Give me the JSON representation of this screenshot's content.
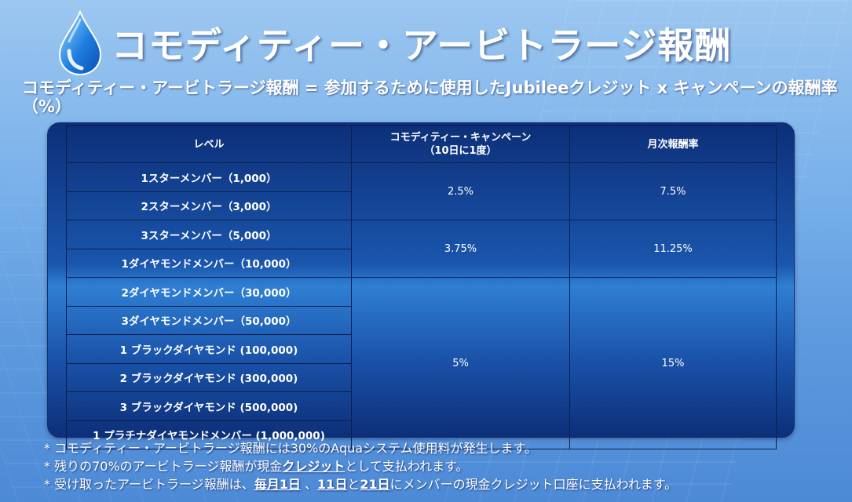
{
  "title": "コモディティー・アービトラージ報酬",
  "formula": "コモディティー・アービトラージ報酬 = 参加するために使用したJubileeクレジット x キャンペーンの報酬率（%）",
  "table": {
    "headers": {
      "level": "レベル",
      "campaign_line1": "コモディティー・キャンペーン",
      "campaign_line2": "（10日に1度）",
      "monthly": "月次報酬率"
    },
    "levels": [
      "1スターメンバー（1,000）",
      "2スターメンバー（3,000）",
      "3スターメンバー（5,000）",
      "1ダイヤモンドメンバー（10,000）",
      "2ダイヤモンドメンバー（30,000）",
      "3ダイヤモンドメンバー（50,000）",
      "1 ブラックダイヤモンド (100,000)",
      "2 ブラックダイヤモンド (300,000)",
      "3 ブラックダイヤモンド (500,000)",
      "1 プラチナダイヤモンドメンバー (1,000,000)"
    ],
    "groups": [
      {
        "campaign_rate": "2.5%",
        "monthly_rate": "7.5%"
      },
      {
        "campaign_rate": "3.75%",
        "monthly_rate": "11.25%"
      },
      {
        "campaign_rate": "5%",
        "monthly_rate": "15%"
      }
    ]
  },
  "notes": {
    "note1": "* コモディティー・アービトラージ報酬には30%のAquaシステム使用料が発生します。",
    "note2_prefix": "* 残りの70%のアービトラージ報酬が現金",
    "note2_credit": "クレジット",
    "note2_suffix": "として支払われます。",
    "note3_prefix": "* 受け取ったアービトラージ報酬は、",
    "note3_day1": "毎月1日",
    "note3_sep1": " 、",
    "note3_day11": "11日",
    "note3_sep2": "と",
    "note3_day21": "21日",
    "note3_suffix": "にメンバーの現金クレジット口座に支払われます。"
  },
  "colors": {
    "panel_dark": "#0d2f78",
    "panel_mid": "#2f7fd3",
    "border": "#0a1f4d"
  },
  "icons": {
    "logo": "water-drop-icon"
  }
}
